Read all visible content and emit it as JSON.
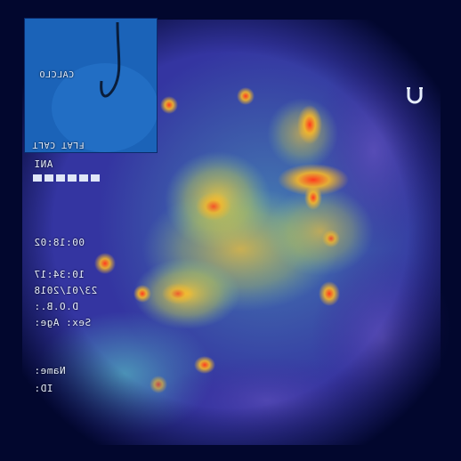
{
  "overlay": {
    "inset_text_1": "CALCLO",
    "inset_text_2": "FLAT CALT",
    "label_in": "ANI",
    "time": "00:18:02",
    "date_1": "10:34:17",
    "date_2": "23/01/2018",
    "dob": "D.O.B.:",
    "sex_age": "Sex:   Age:",
    "name": "Name:",
    "id": "ID:"
  },
  "colors": {
    "background": "#02072e",
    "heat_low": "#2a1f8a",
    "heat_mid": "#3fb6c8",
    "heat_high": "#f0c030",
    "heat_peak": "#e8402a",
    "inset_blue": "#1b63b8"
  },
  "icons": {
    "magnet": "magnet-icon",
    "cable": "guidewire-icon"
  }
}
